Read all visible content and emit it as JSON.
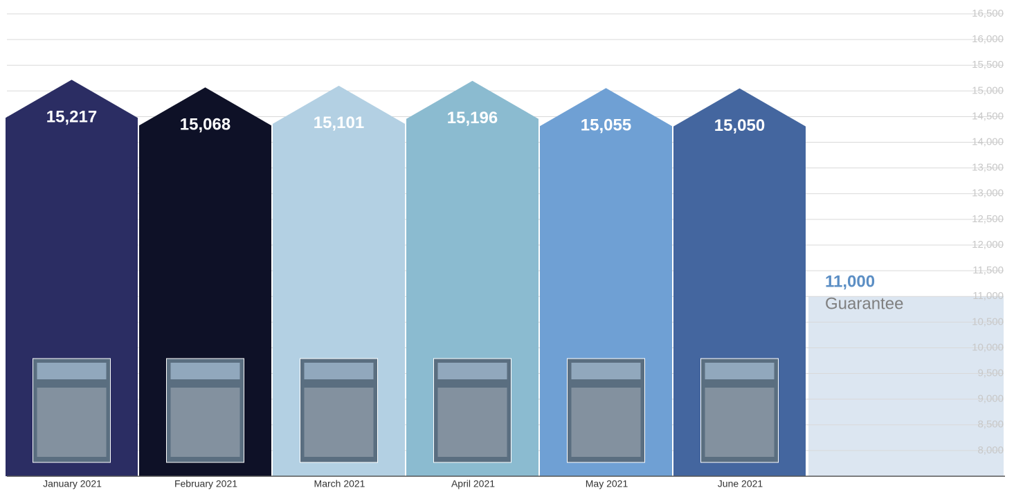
{
  "chart_data": {
    "type": "bar",
    "categories": [
      "January 2021",
      "February 2021",
      "March 2021",
      "April 2021",
      "May 2021",
      "June 2021"
    ],
    "values": [
      15217,
      15068,
      15101,
      15196,
      15055,
      15050
    ],
    "value_labels": [
      "15,217",
      "15,068",
      "15,101",
      "15,196",
      "15,055",
      "15,050"
    ],
    "colors": [
      "#2b2d63",
      "#0e1127",
      "#b3d0e3",
      "#8bbbd0",
      "#6fa0d4",
      "#44669f"
    ],
    "ylim": [
      7500,
      16500
    ],
    "yticks": [
      {
        "value": 8000,
        "label": "8,000"
      },
      {
        "value": 8500,
        "label": "8,500"
      },
      {
        "value": 9000,
        "label": "9,000"
      },
      {
        "value": 9500,
        "label": "9,500"
      },
      {
        "value": 10000,
        "label": "10,000"
      },
      {
        "value": 10500,
        "label": "10,500"
      },
      {
        "value": 11000,
        "label": "11,000"
      },
      {
        "value": 11500,
        "label": "11,500"
      },
      {
        "value": 12000,
        "label": "12,000"
      },
      {
        "value": 12500,
        "label": "12,500"
      },
      {
        "value": 13000,
        "label": "13,000"
      },
      {
        "value": 13500,
        "label": "13,500"
      },
      {
        "value": 14000,
        "label": "14,000"
      },
      {
        "value": 14500,
        "label": "14,500"
      },
      {
        "value": 15000,
        "label": "15,000"
      },
      {
        "value": 15500,
        "label": "15,500"
      },
      {
        "value": 16000,
        "label": "16,000"
      },
      {
        "value": 16500,
        "label": "16,500"
      }
    ],
    "grid": true,
    "guarantee": {
      "value": 11000,
      "value_label": "11,000",
      "label": "Guarantee",
      "color": "#dce6f1"
    }
  }
}
